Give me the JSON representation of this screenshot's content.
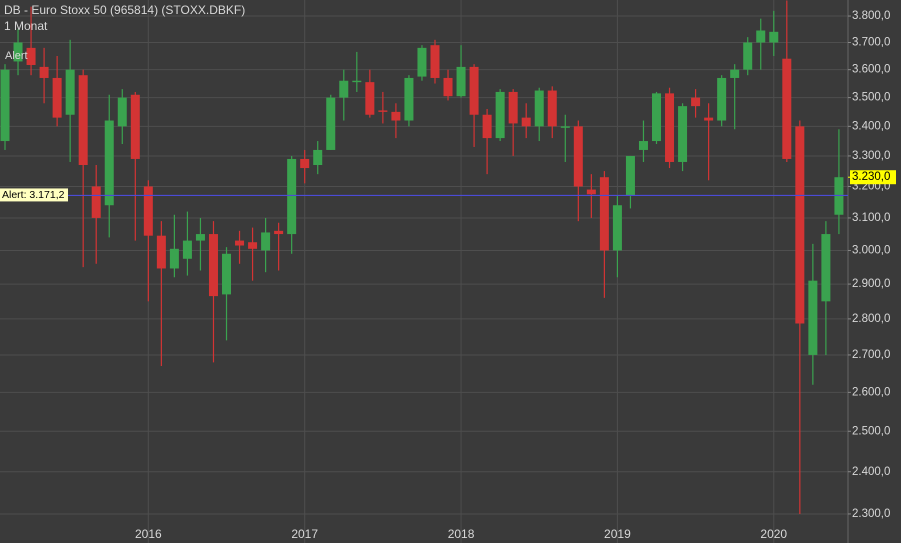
{
  "chart_data": {
    "type": "candlestick",
    "title": "DB - Euro Stoxx 50 (965814) (STOXX.DBKF)",
    "subtitle": "1 Monat",
    "alert_marker": "Alert",
    "alert_line": {
      "value": 3171.2,
      "label": "Alert: 3.171,2"
    },
    "last_price": {
      "value": 3230,
      "label": "3.230,0"
    },
    "log_scale": true,
    "grid": true,
    "up_color": "#3aa34f",
    "down_color": "#d33434",
    "alert_color": "#4b4bd6",
    "categories": [
      null,
      null,
      null,
      null,
      null,
      null,
      null,
      null,
      null,
      null,
      null,
      "2016",
      null,
      null,
      null,
      null,
      null,
      null,
      null,
      null,
      null,
      null,
      null,
      "2017",
      null,
      null,
      null,
      null,
      null,
      null,
      null,
      null,
      null,
      null,
      null,
      "2018",
      null,
      null,
      null,
      null,
      null,
      null,
      null,
      null,
      null,
      null,
      null,
      "2019",
      null,
      null,
      null,
      null,
      null,
      null,
      null,
      null,
      null,
      null,
      null,
      "2020",
      null,
      null,
      null,
      null,
      null
    ],
    "open": [
      3350,
      3630,
      3680,
      3610,
      3570,
      3440,
      3580,
      3200,
      3140,
      3400,
      3510,
      3200,
      3045,
      2946,
      2975,
      3030,
      3050,
      2870,
      3030,
      3025,
      3000,
      3060,
      3050,
      3290,
      3270,
      3320,
      3500,
      3555,
      3555,
      3455,
      3450,
      3420,
      3575,
      3690,
      3570,
      3505,
      3610,
      3440,
      3360,
      3520,
      3430,
      3400,
      3525,
      3395,
      3400,
      3190,
      3230,
      3000,
      3170,
      3320,
      3350,
      3515,
      3280,
      3500,
      3430,
      3420,
      3570,
      3600,
      3700,
      3700,
      3640,
      3400,
      2700,
      2850,
      3110
    ],
    "high": [
      3620,
      3750,
      3836,
      3680,
      3650,
      3710,
      3600,
      3270,
      3510,
      3530,
      3520,
      3220,
      3090,
      3110,
      3120,
      3100,
      3090,
      3010,
      3060,
      3070,
      3100,
      3085,
      3300,
      3320,
      3350,
      3510,
      3600,
      3665,
      3600,
      3520,
      3480,
      3580,
      3690,
      3710,
      3600,
      3690,
      3620,
      3460,
      3530,
      3530,
      3480,
      3535,
      3540,
      3440,
      3420,
      3240,
      3250,
      3170,
      3300,
      3420,
      3520,
      3535,
      3480,
      3530,
      3480,
      3580,
      3620,
      3720,
      3790,
      3820,
      3860,
      3420,
      3020,
      3090,
      3390
    ],
    "low": [
      3320,
      3580,
      3580,
      3480,
      3400,
      3280,
      2950,
      2960,
      3040,
      3340,
      3030,
      2850,
      2670,
      2920,
      2925,
      2940,
      2680,
      2740,
      2960,
      2910,
      2935,
      2940,
      2990,
      3210,
      3240,
      3320,
      3420,
      3520,
      3430,
      3410,
      3360,
      3400,
      3560,
      3550,
      3490,
      3500,
      3330,
      3240,
      3350,
      3300,
      3360,
      3350,
      3360,
      3280,
      3090,
      3100,
      2860,
      2920,
      3130,
      3280,
      3340,
      3260,
      3250,
      3430,
      3220,
      3400,
      3390,
      3580,
      3600,
      3650,
      3280,
      2300,
      2620,
      2700,
      3050
    ],
    "close": [
      3600,
      3700,
      3617,
      3570,
      3430,
      3600,
      3270,
      3100,
      3420,
      3500,
      3290,
      3045,
      2946,
      3005,
      3030,
      3050,
      2865,
      2990,
      3015,
      3005,
      3055,
      3050,
      3290,
      3260,
      3320,
      3500,
      3560,
      3560,
      3440,
      3450,
      3420,
      3570,
      3680,
      3570,
      3505,
      3610,
      3440,
      3360,
      3520,
      3410,
      3400,
      3525,
      3400,
      3400,
      3200,
      3175,
      3000,
      3140,
      3300,
      3350,
      3515,
      3280,
      3470,
      3470,
      3420,
      3570,
      3600,
      3700,
      3745,
      3740,
      3290,
      2787,
      2910,
      3050,
      3230
    ],
    "ylim": [
      2286,
      3862
    ],
    "yticks": [
      {
        "value": 3800,
        "label": "3.800,0"
      },
      {
        "value": 3700,
        "label": "3.700,0"
      },
      {
        "value": 3600,
        "label": "3.600,0"
      },
      {
        "value": 3500,
        "label": "3.500,0"
      },
      {
        "value": 3400,
        "label": "3.400,0"
      },
      {
        "value": 3300,
        "label": "3.300,0"
      },
      {
        "value": 3200,
        "label": "3.200,0"
      },
      {
        "value": 3100,
        "label": "3.100,0"
      },
      {
        "value": 3000,
        "label": "3.000,0"
      },
      {
        "value": 2900,
        "label": "2.900,0"
      },
      {
        "value": 2800,
        "label": "2.800,0"
      },
      {
        "value": 2700,
        "label": "2.700,0"
      },
      {
        "value": 2600,
        "label": "2.600,0"
      },
      {
        "value": 2500,
        "label": "2.500,0"
      },
      {
        "value": 2400,
        "label": "2.400,0"
      },
      {
        "value": 2300,
        "label": "2.300,0"
      }
    ]
  }
}
